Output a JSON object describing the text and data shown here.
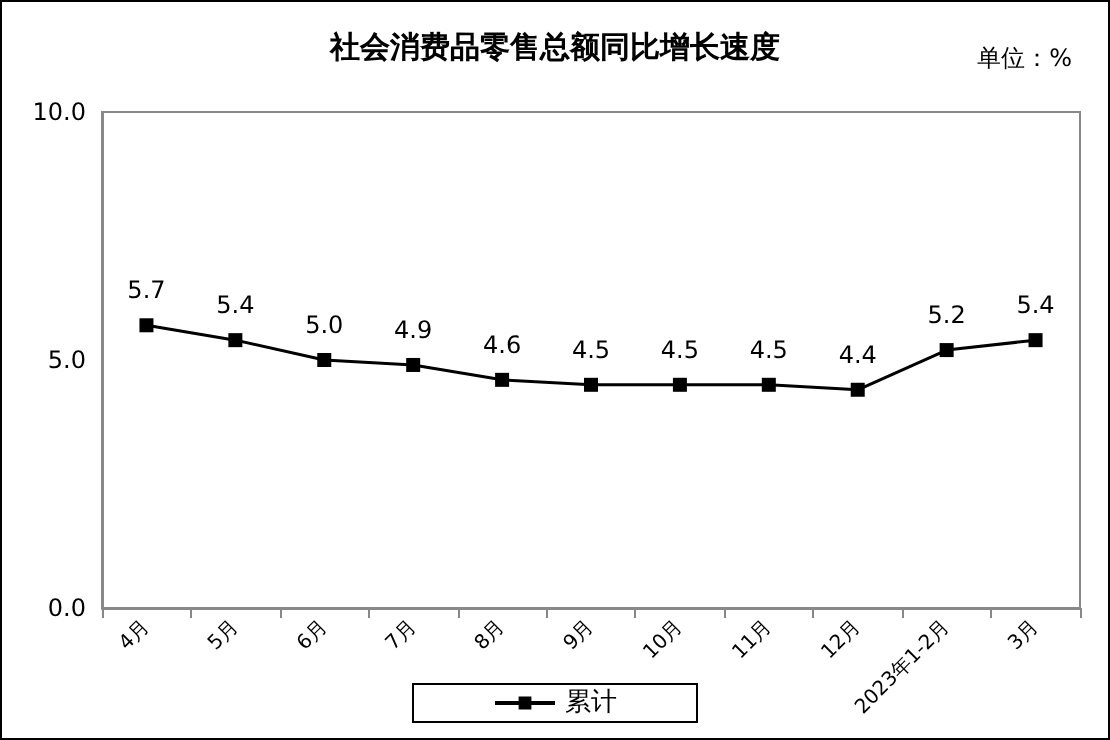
{
  "chart_data": {
    "type": "line",
    "title": "社会消费品零售总额同比增长速度",
    "annotations": [
      "单位：%"
    ],
    "categories": [
      "4月",
      "5月",
      "6月",
      "7月",
      "8月",
      "9月",
      "10月",
      "11月",
      "12月",
      "2023年1-2月",
      "3月"
    ],
    "series": [
      {
        "name": "累计",
        "color": "#000000",
        "values": [
          5.7,
          5.4,
          5.0,
          4.9,
          4.6,
          4.5,
          4.5,
          4.5,
          4.4,
          5.2,
          5.4
        ],
        "value_labels": [
          "5.7",
          "5.4",
          "5.0",
          "4.9",
          "4.6",
          "4.5",
          "4.5",
          "4.5",
          "4.4",
          "5.2",
          "5.4"
        ]
      }
    ],
    "ylim": [
      0,
      10
    ],
    "yticks": [
      {
        "value": 0,
        "label": "0.0"
      },
      {
        "value": 5,
        "label": "5.0"
      },
      {
        "value": 10,
        "label": "10.0"
      }
    ],
    "grid": false,
    "legend": "bottom",
    "marker": "square",
    "line_style": "solid"
  }
}
